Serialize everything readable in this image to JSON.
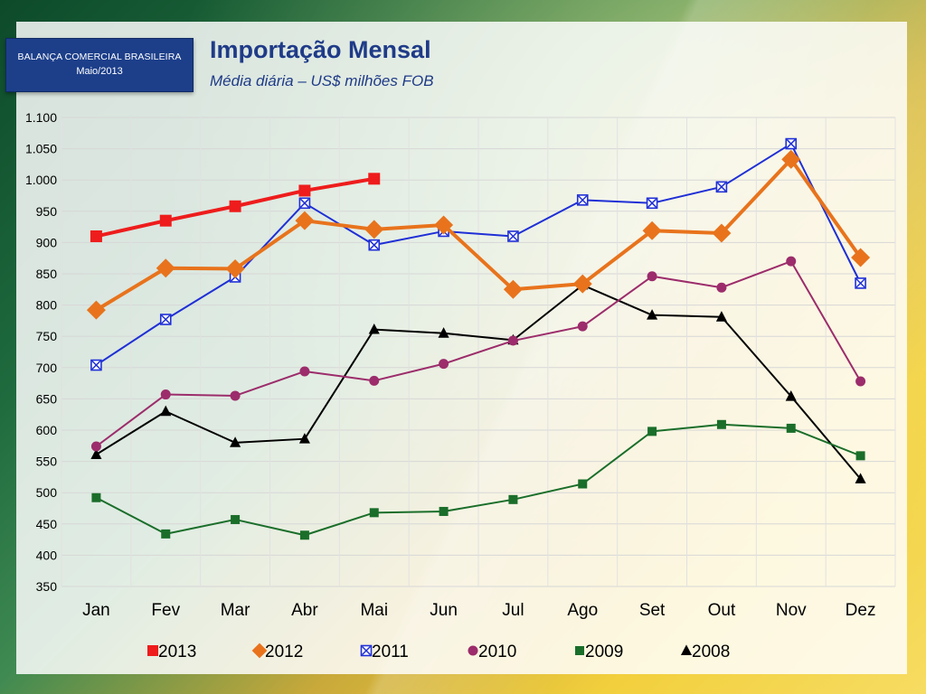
{
  "header": {
    "badge_title": "BALANÇA COMERCIAL BRASILEIRA",
    "badge_date": "Maio/2013",
    "title": "Importação Mensal",
    "subtitle": "Média diária – US$ milhões FOB"
  },
  "chart_data": {
    "type": "line",
    "title": "Importação Mensal",
    "subtitle": "Média diária – US$ milhões FOB",
    "xlabel": "",
    "ylabel": "",
    "categories": [
      "Jan",
      "Fev",
      "Mar",
      "Abr",
      "Mai",
      "Jun",
      "Jul",
      "Ago",
      "Set",
      "Out",
      "Nov",
      "Dez"
    ],
    "ylim": [
      350,
      1100
    ],
    "y_ticks": [
      350,
      400,
      450,
      500,
      550,
      600,
      650,
      700,
      750,
      800,
      850,
      900,
      950,
      1000,
      1050,
      1100
    ],
    "y_tick_labels": [
      "350",
      "400",
      "450",
      "500",
      "550",
      "600",
      "650",
      "700",
      "750",
      "800",
      "850",
      "900",
      "950",
      "1.000",
      "1.050",
      "1.100"
    ],
    "grid": true,
    "legend_position": "bottom",
    "series": [
      {
        "name": "2013",
        "color": "#ee1c1c",
        "marker": "square",
        "values": [
          910,
          935,
          958,
          983,
          1002,
          null,
          null,
          null,
          null,
          null,
          null,
          null
        ]
      },
      {
        "name": "2012",
        "color": "#e8731c",
        "marker": "diamond",
        "values": [
          792,
          859,
          858,
          935,
          921,
          928,
          825,
          834,
          919,
          915,
          1033,
          876
        ]
      },
      {
        "name": "2011",
        "color": "#1f2fd6",
        "marker": "boxed-x",
        "values": [
          704,
          777,
          845,
          963,
          896,
          918,
          910,
          968,
          963,
          989,
          1058,
          835
        ]
      },
      {
        "name": "2010",
        "color": "#9c2c6b",
        "marker": "circle",
        "values": [
          574,
          657,
          655,
          694,
          679,
          706,
          743,
          766,
          846,
          828,
          870,
          678
        ]
      },
      {
        "name": "2009",
        "color": "#1a6e2a",
        "marker": "square",
        "values": [
          492,
          434,
          457,
          432,
          468,
          470,
          489,
          514,
          598,
          609,
          603,
          559
        ]
      },
      {
        "name": "2008",
        "color": "#000000",
        "marker": "triangle",
        "values": [
          561,
          630,
          580,
          586,
          761,
          755,
          744,
          832,
          784,
          781,
          654,
          522
        ]
      }
    ]
  }
}
